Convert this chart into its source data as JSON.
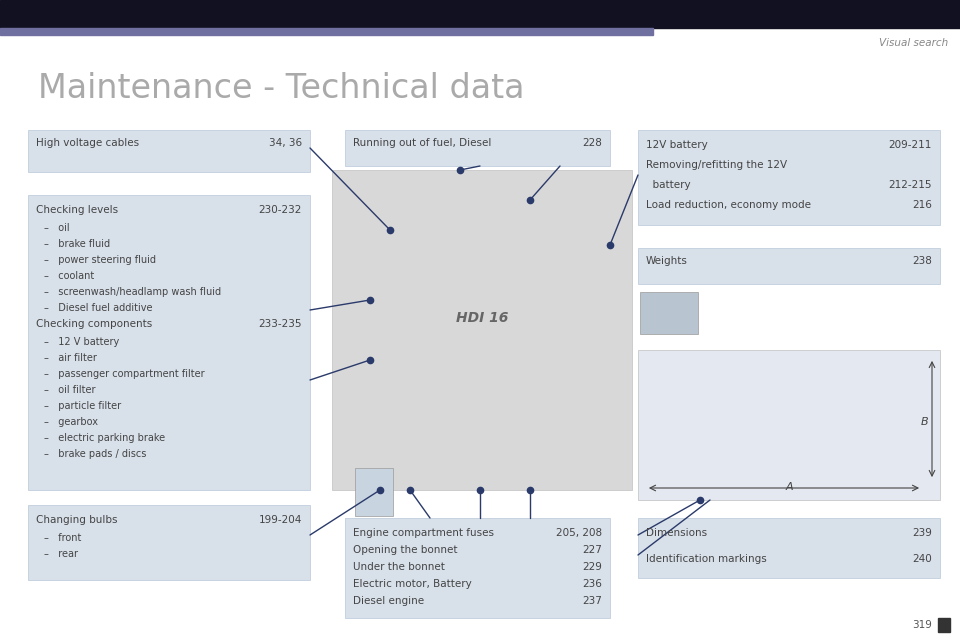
{
  "page_title": "Maintenance - Technical data",
  "header_text": "Visual search",
  "page_number": "319",
  "bg_color": "#ffffff",
  "header_bar_color": "#111122",
  "accent_line_color": "#7070a0",
  "box_bg_color": "#d8e0ea",
  "box_border_color": "#b8c8d8",
  "text_color": "#444444",
  "title_color": "#aaaaaa",
  "line_color": "#2a3a6a"
}
